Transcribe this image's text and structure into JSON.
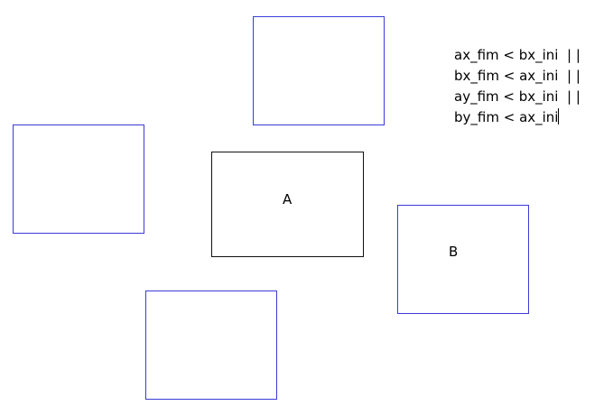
{
  "diagram": {
    "boxes": {
      "a": {
        "label": "A"
      },
      "b": {
        "label": "B"
      }
    },
    "condition_lines": [
      {
        "expr": "ax_fim < bx_ini",
        "op": "| |"
      },
      {
        "expr": "bx_fim < ax_ini",
        "op": "| |"
      },
      {
        "expr": "ay_fim < bx_ini",
        "op": "| |"
      },
      {
        "expr": "by_fim < ax_ini",
        "op": ""
      }
    ],
    "colors": {
      "blue_border": "#3b3bd6",
      "black_border": "#111111"
    }
  }
}
